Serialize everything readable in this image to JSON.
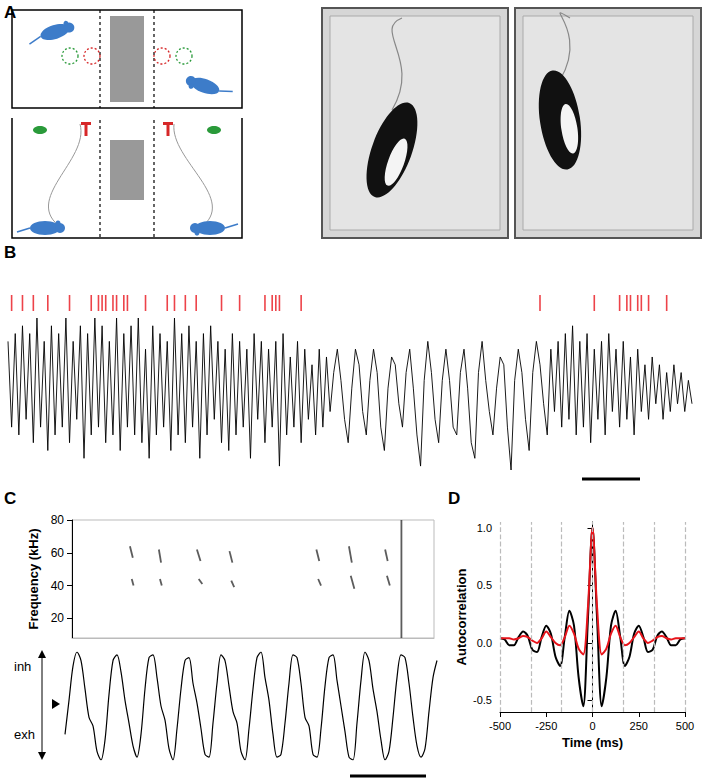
{
  "panel_labels": [
    "A",
    "B",
    "C",
    "D"
  ],
  "chart_data": [
    {
      "type": "line",
      "tick_labels": false,
      "series": [
        {
          "type": "line",
          "color": "#000000",
          "values": [
            0.6,
            -0.5,
            0.7,
            -0.6,
            0.8,
            -0.4,
            0.7,
            -0.7,
            0.9,
            -0.5,
            0.6,
            -0.8,
            0.8,
            -0.6,
            0.7,
            -0.5,
            0.9,
            -0.7,
            0.6,
            -0.4,
            0.8,
            -0.9,
            0.7,
            -0.6,
            0.9,
            -0.5,
            0.8,
            -0.7,
            0.6,
            -0.6,
            0.9,
            -0.8,
            0.7,
            -0.5,
            0.8,
            -0.6,
            0.9,
            -0.7,
            0.5,
            -0.9,
            0.8,
            -0.6,
            0.7,
            -0.5,
            0.6,
            -0.8,
            0.9,
            -0.6,
            0.7,
            -0.7,
            0.8,
            -0.5,
            0.6,
            -0.9,
            0.7,
            -0.6,
            0.8,
            -0.4,
            0.6,
            -0.7,
            0.5,
            -0.8,
            0.7,
            -0.6,
            0.6,
            -0.5,
            0.5,
            -0.9,
            0.7,
            -0.4,
            0.6,
            -0.7,
            0.5,
            -0.5,
            0.6,
            -1.0,
            0.7,
            -0.6,
            0.4,
            -0.5,
            0.6,
            -0.7,
            0.5,
            -0.4,
            0.3,
            -0.6,
            0.5,
            -0.5,
            0.4,
            -0.3,
            0.2,
            0.5,
            0.1,
            -0.4,
            -0.7,
            0.0,
            0.5,
            0.3,
            -0.3,
            -0.6,
            0.1,
            0.5,
            0.2,
            -0.5,
            -0.8,
            0.0,
            0.4,
            0.3,
            -0.2,
            -0.5,
            0.2,
            0.5,
            0.0,
            -0.6,
            -1.0,
            0.1,
            0.6,
            0.2,
            -0.4,
            -0.7,
            0.1,
            0.5,
            0.1,
            -0.5,
            -0.6,
            0.2,
            0.5,
            0.0,
            -0.7,
            -0.9,
            0.2,
            0.6,
            0.1,
            -0.3,
            -0.6,
            0.0,
            0.4,
            0.3,
            -0.5,
            -1.05,
            0.1,
            0.5,
            0.2,
            -0.4,
            -0.8,
            0.2,
            0.6,
            0.3,
            -0.2,
            -0.6,
            0.5,
            -0.3,
            0.6,
            -0.5,
            0.7,
            -0.4,
            0.8,
            -0.6,
            0.6,
            -0.5,
            0.7,
            -0.7,
            0.5,
            -0.4,
            0.6,
            -0.6,
            0.7,
            -0.3,
            0.5,
            -0.5,
            0.6,
            -0.4,
            0.4,
            -0.6,
            0.5,
            -0.3,
            0.3,
            -0.4,
            0.4,
            -0.2,
            0.3,
            -0.4,
            0.2,
            -0.3,
            0.3,
            -0.2,
            0.2,
            -0.3,
            0.1,
            -0.2
          ]
        },
        {
          "type": "raster",
          "color": "#e8141b",
          "values": [
            1,
            4,
            7,
            11,
            17,
            23,
            25,
            26,
            27,
            29,
            30,
            32,
            33,
            38,
            44,
            46,
            49,
            52,
            59,
            64,
            71,
            73,
            74,
            75,
            81,
            147,
            162,
            169,
            171,
            172,
            174,
            175,
            177,
            182
          ]
        }
      ]
    },
    {
      "type": "spectrogram",
      "ylabel": "Frequency (kHz)",
      "xlim": [
        0,
        100
      ],
      "ylim": [
        8,
        80
      ],
      "yticks": [
        20,
        40,
        60,
        80
      ],
      "tick_labels": "y",
      "color": "#333333",
      "segments": [
        [
          16,
          64,
          16.8,
          57
        ],
        [
          16.5,
          44,
          17,
          40
        ],
        [
          24,
          62,
          24.6,
          54
        ],
        [
          24.3,
          44,
          24.8,
          40
        ],
        [
          34.5,
          62,
          35.5,
          55
        ],
        [
          35,
          44,
          36,
          41
        ],
        [
          43.5,
          61,
          44.3,
          54
        ],
        [
          44,
          43,
          44.8,
          39
        ],
        [
          67.5,
          62,
          68.3,
          55
        ],
        [
          68,
          44,
          68.8,
          40
        ],
        [
          76.5,
          64,
          77.3,
          54
        ],
        [
          77,
          46,
          78,
          38
        ],
        [
          86.5,
          62,
          87.2,
          55
        ],
        [
          87,
          46,
          87.8,
          40
        ],
        [
          91,
          8,
          91,
          80
        ]
      ]
    },
    {
      "type": "line",
      "tick_labels": false,
      "annotations": [
        "inh",
        "exh"
      ],
      "color": "#000000",
      "values": [
        -0.5,
        0.1,
        0.7,
        0.95,
        0.8,
        0.3,
        -0.2,
        -0.35,
        -0.8,
        -0.95,
        -0.6,
        0.2,
        0.8,
        0.9,
        0.6,
        0.1,
        -0.3,
        -0.7,
        -0.9,
        -0.5,
        0.3,
        0.85,
        0.9,
        0.5,
        0.0,
        -0.25,
        -0.75,
        -0.95,
        -0.4,
        0.3,
        0.8,
        0.85,
        0.4,
        0.05,
        -0.4,
        -0.85,
        -0.9,
        -0.3,
        0.4,
        0.9,
        0.8,
        0.35,
        -0.1,
        -0.3,
        -0.8,
        -0.95,
        -0.4,
        0.3,
        0.85,
        0.95,
        0.5,
        0.1,
        -0.5,
        -0.9,
        -0.85,
        -0.3,
        0.4,
        0.9,
        0.85,
        0.4,
        -0.2,
        -0.35,
        -0.85,
        -0.9,
        -0.4,
        0.35,
        0.85,
        0.9,
        0.45,
        0.0,
        -0.45,
        -0.9,
        -0.95,
        -0.3,
        0.45,
        0.95,
        0.8,
        0.3,
        -0.1,
        -0.6,
        -0.95,
        -0.8,
        -0.2,
        0.5,
        0.9,
        0.85,
        0.4,
        -0.2,
        -0.7,
        -0.9,
        -0.75,
        -0.1,
        0.5,
        0.8
      ]
    },
    {
      "type": "line",
      "xlabel": "Time (ms)",
      "ylabel": "Autocorrelation",
      "x": [
        -500,
        -475,
        -450,
        -425,
        -400,
        -375,
        -350,
        -325,
        -300,
        -275,
        -250,
        -225,
        -200,
        -175,
        -150,
        -125,
        -100,
        -75,
        -50,
        -25,
        0,
        25,
        50,
        75,
        100,
        125,
        150,
        175,
        200,
        225,
        250,
        275,
        300,
        325,
        350,
        375,
        400,
        425,
        450,
        475,
        500
      ],
      "xlim": [
        -500,
        500
      ],
      "xticks": [
        -500,
        -250,
        0,
        250,
        500
      ],
      "ylim": [
        -0.6,
        1.05
      ],
      "yticks": [
        -0.5,
        {
          "value": 0,
          "label": "0.0"
        },
        0.5,
        {
          "value": 1,
          "label": "1.0"
        }
      ],
      "reference_lines": [
        -500,
        -333,
        -167,
        0,
        167,
        333,
        500
      ],
      "series": [
        {
          "color": "#000000",
          "values": [
            0.04,
            0.03,
            -0.02,
            -0.02,
            0.05,
            0.1,
            0.06,
            -0.06,
            -0.08,
            0.05,
            0.15,
            0.08,
            -0.12,
            -0.2,
            0.05,
            0.28,
            0.15,
            -0.3,
            -0.55,
            0.2,
            1.0,
            0.2,
            -0.55,
            -0.3,
            0.15,
            0.28,
            0.05,
            -0.2,
            -0.12,
            0.08,
            0.15,
            0.05,
            -0.08,
            -0.06,
            0.06,
            0.1,
            0.05,
            -0.02,
            -0.02,
            0.03,
            0.04
          ]
        },
        {
          "color": "#e8141b",
          "values": [
            0.04,
            0.04,
            0.04,
            0.03,
            0.04,
            0.06,
            0.05,
            0.02,
            0.0,
            0.04,
            0.1,
            0.05,
            0.0,
            -0.02,
            0.05,
            0.15,
            0.08,
            -0.05,
            -0.1,
            0.3,
            1.0,
            0.3,
            -0.1,
            -0.05,
            0.08,
            0.15,
            0.05,
            -0.02,
            0.0,
            0.05,
            0.1,
            0.04,
            0.0,
            0.02,
            0.05,
            0.06,
            0.04,
            0.03,
            0.04,
            0.04,
            0.04
          ]
        }
      ]
    }
  ]
}
